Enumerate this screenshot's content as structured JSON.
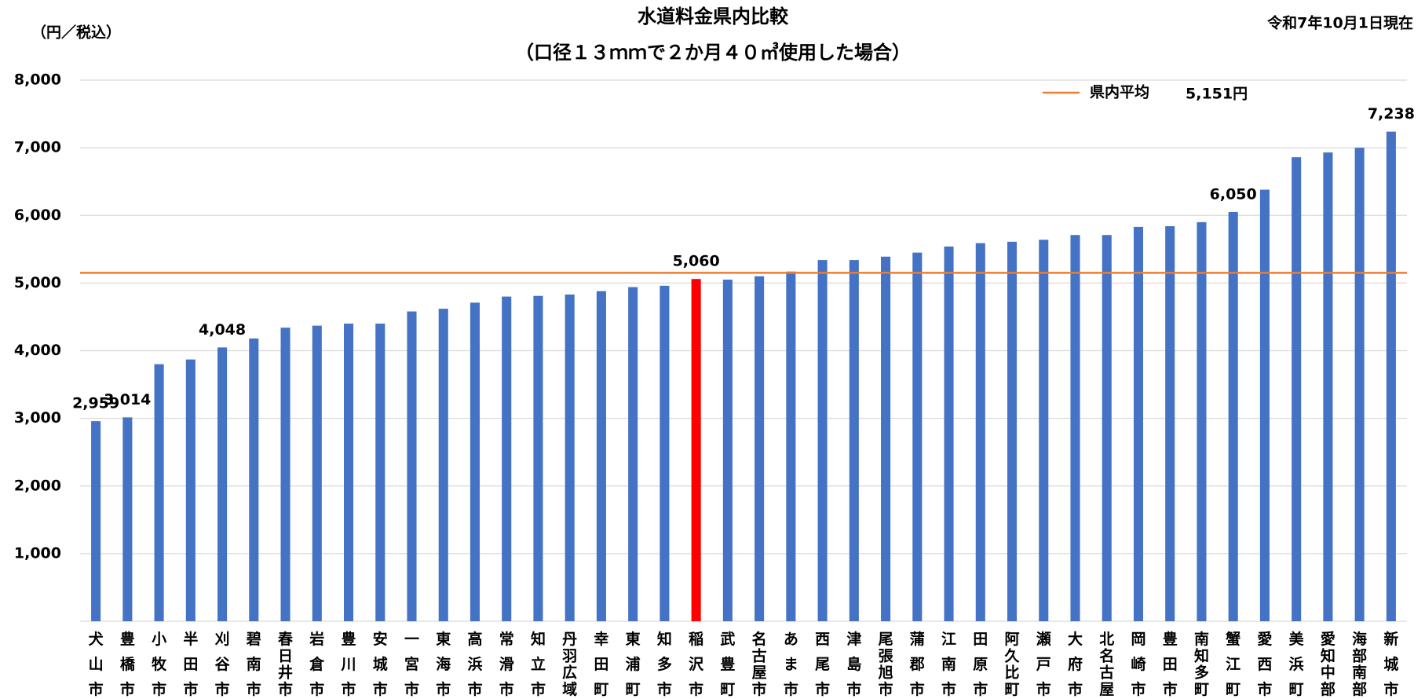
{
  "chart_data": {
    "type": "bar",
    "title": "水道料金県内比較",
    "subtitle": "（口径１３ｍｍで２か月４０㎥使用した場合）",
    "y_label": "（円／税込）",
    "date_note": "令和7年10月1日現在",
    "categories": [
      "犬山市",
      "豊橋市",
      "小牧市",
      "半田市",
      "刈谷市",
      "碧南市",
      "春日井市",
      "岩倉市",
      "豊川市",
      "安城市",
      "一宮市",
      "東海市",
      "高浜市",
      "常滑市",
      "知立市",
      "丹羽広域",
      "幸田町",
      "東浦町",
      "知多市",
      "稲沢市",
      "武豊町",
      "名古屋市",
      "あま市",
      "西尾市",
      "津島市",
      "尾張旭市",
      "蒲郡市",
      "江南市",
      "田原市",
      "阿久比町",
      "瀬戸市",
      "大府市",
      "北名古屋",
      "岡崎市",
      "豊田市",
      "南知多町",
      "蟹江町",
      "愛西市",
      "美浜町",
      "愛知中部",
      "海部南部",
      "新城市"
    ],
    "values": [
      2959,
      3014,
      3800,
      3870,
      4048,
      4180,
      4340,
      4370,
      4400,
      4400,
      4580,
      4620,
      4710,
      4800,
      4810,
      4830,
      4880,
      4940,
      4960,
      5060,
      5050,
      5100,
      5170,
      5340,
      5340,
      5390,
      5450,
      5540,
      5590,
      5610,
      5640,
      5710,
      5710,
      5830,
      5840,
      5900,
      6050,
      6380,
      6860,
      6930,
      7000,
      7238
    ],
    "value_labels": [
      "2,959",
      "3,014",
      null,
      null,
      "4,048",
      null,
      null,
      null,
      null,
      null,
      null,
      null,
      null,
      null,
      null,
      null,
      null,
      null,
      null,
      "5,060",
      null,
      null,
      null,
      null,
      null,
      null,
      null,
      null,
      null,
      null,
      null,
      null,
      null,
      null,
      null,
      null,
      "6,050",
      null,
      null,
      null,
      null,
      "7,238"
    ],
    "color": "#4472c4",
    "highlight": {
      "category": "稲沢市",
      "color": "#ff0000"
    },
    "average": {
      "name": "県内平均",
      "value": 5151,
      "label": "5,151円",
      "color": "#ed7d31"
    },
    "ylim": [
      0,
      8000
    ],
    "yticks": [
      {
        "value": 1000,
        "label": "1,000"
      },
      {
        "value": 2000,
        "label": "2,000"
      },
      {
        "value": 3000,
        "label": "3,000"
      },
      {
        "value": 4000,
        "label": "4,000"
      },
      {
        "value": 5000,
        "label": "5,000"
      },
      {
        "value": 6000,
        "label": "6,000"
      },
      {
        "value": 7000,
        "label": "7,000"
      },
      {
        "value": 8000,
        "label": "8,000"
      }
    ],
    "grid": true
  }
}
